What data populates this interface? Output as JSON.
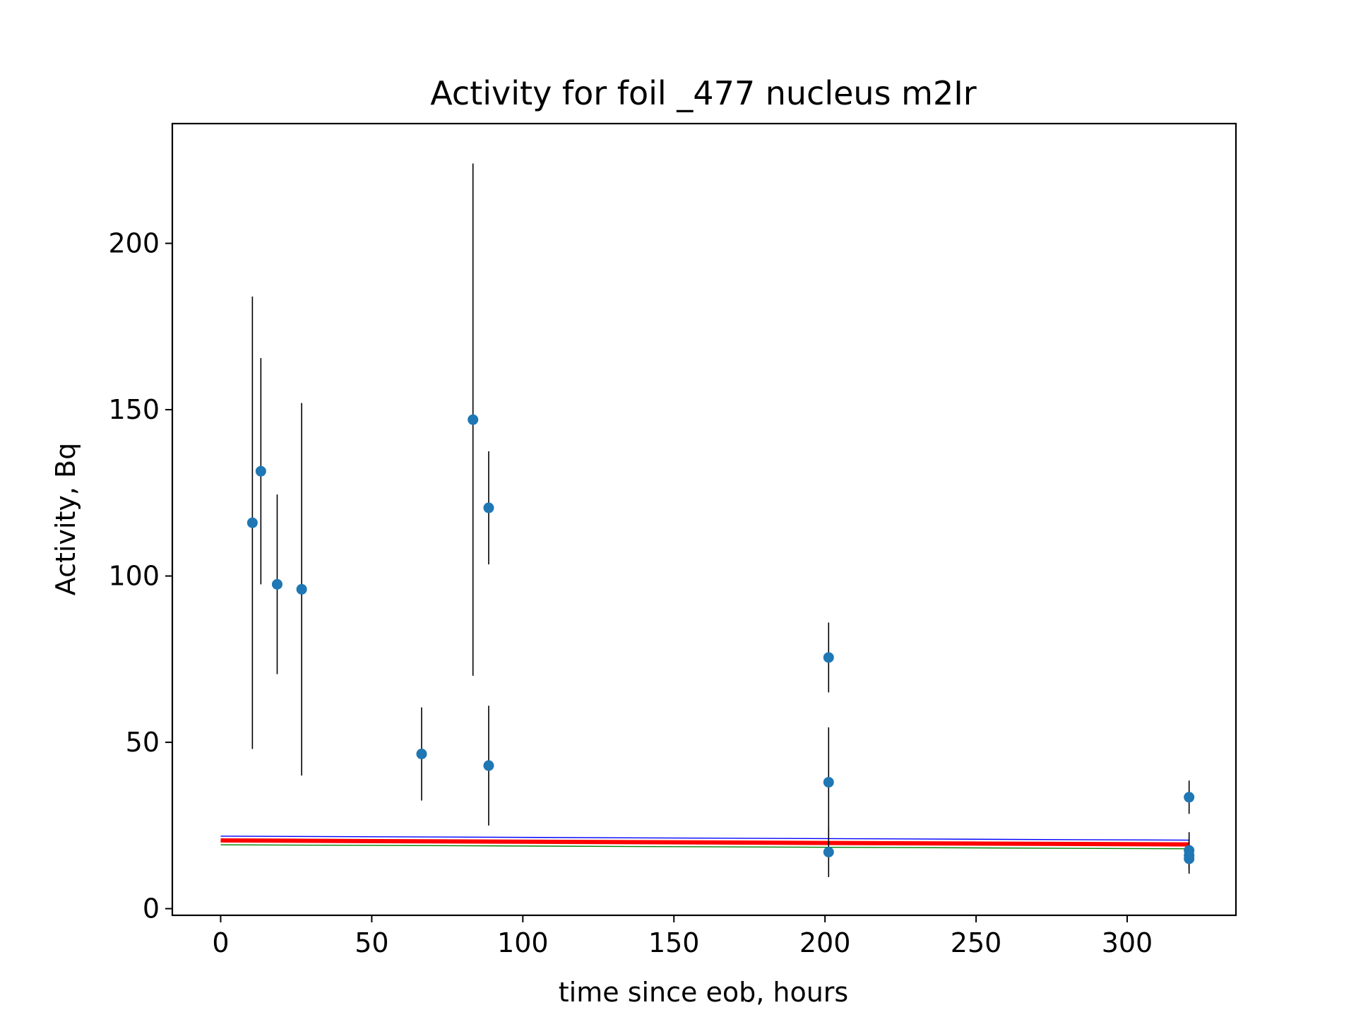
{
  "chart_data": {
    "type": "scatter",
    "title": "Activity for foil _477 nucleus m2Ir",
    "xlabel": "time since eob, hours",
    "ylabel": "Activity, Bq",
    "xlim": [
      -16,
      336
    ],
    "ylim": [
      -2,
      236
    ],
    "xticks": [
      0,
      50,
      100,
      150,
      200,
      250,
      300
    ],
    "yticks": [
      0,
      50,
      100,
      150,
      200
    ],
    "grid": false,
    "legend": "none",
    "points": [
      {
        "x": 10.5,
        "y": 116,
        "err": 68
      },
      {
        "x": 13.3,
        "y": 131.5,
        "err": 34
      },
      {
        "x": 18.7,
        "y": 97.5,
        "err": 27
      },
      {
        "x": 26.8,
        "y": 96,
        "err": 56
      },
      {
        "x": 66.5,
        "y": 46.5,
        "err": 14
      },
      {
        "x": 83.5,
        "y": 147,
        "err": 77
      },
      {
        "x": 88.7,
        "y": 120.5,
        "err": 17
      },
      {
        "x": 88.7,
        "y": 43,
        "err": 18
      },
      {
        "x": 201.2,
        "y": 75.5,
        "err": 10.5
      },
      {
        "x": 201.2,
        "y": 38,
        "err": 16.5
      },
      {
        "x": 201.2,
        "y": 17,
        "err": 7.5
      },
      {
        "x": 320.5,
        "y": 33.5,
        "err": 5
      },
      {
        "x": 320.5,
        "y": 17.5,
        "err": 5.5
      },
      {
        "x": 320.5,
        "y": 16,
        "err": 4.5
      },
      {
        "x": 320.5,
        "y": 15,
        "err": 4.5
      }
    ],
    "fit_lines": [
      {
        "color": "#0000ff",
        "x": [
          0,
          320.5
        ],
        "y": [
          21.8,
          20.6
        ],
        "width": 1.4
      },
      {
        "color": "#ff0000",
        "x": [
          0,
          320.5
        ],
        "y": [
          20.5,
          19.3
        ],
        "width": 6
      },
      {
        "color": "#008000",
        "x": [
          0,
          320.5
        ],
        "y": [
          19.2,
          18.0
        ],
        "width": 1.4
      }
    ],
    "colors": {
      "marker": "#1f77b4",
      "errorbar": "#000000",
      "axes": "#000000"
    }
  }
}
